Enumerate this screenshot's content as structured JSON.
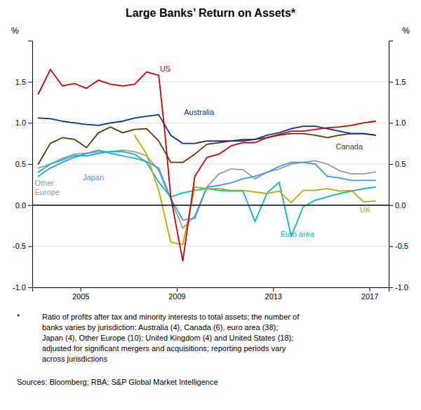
{
  "chart_data": {
    "type": "line",
    "title": "Large Banks’ Return on Assets*",
    "ylabel": "%",
    "y2label": "%",
    "xlim": [
      2003.0,
      2017.8
    ],
    "xticks": [
      2005,
      2009,
      2013,
      2017
    ],
    "ylim": [
      -1.0,
      2.0
    ],
    "yticks": [
      {
        "value": -1.0,
        "label": "-1.0"
      },
      -0.5,
      {
        "value": 0.0,
        "label": "0.0"
      },
      0.5,
      {
        "value": 1.0,
        "label": "1.0"
      },
      1.5
    ],
    "y2lim": [
      -1.0,
      2.0
    ],
    "y2ticks": [
      {
        "value": -1.0,
        "label": "-1.0"
      },
      -0.5,
      {
        "value": 0.0,
        "label": "0.0"
      },
      0.5,
      {
        "value": 1.0,
        "label": "1.0"
      },
      1.5
    ],
    "grid": true,
    "series": [
      {
        "name": "Canada",
        "color": "#663300",
        "x": [
          2003.25,
          2003.75,
          2004.25,
          2004.75,
          2005.25,
          2005.75,
          2006.25,
          2006.75,
          2007.25,
          2007.75,
          2008.25,
          2008.75,
          2009.25,
          2009.75,
          2010.25,
          2010.75,
          2011.25,
          2011.75,
          2012.25,
          2012.75,
          2013.25,
          2013.75,
          2014.25,
          2014.75,
          2015.25,
          2015.75,
          2016.25,
          2016.75,
          2017.25
        ],
        "values": [
          0.5,
          0.75,
          0.82,
          0.8,
          0.7,
          0.88,
          0.95,
          0.88,
          0.92,
          0.93,
          0.78,
          0.52,
          0.52,
          0.62,
          0.74,
          0.76,
          0.78,
          0.8,
          0.8,
          0.82,
          0.85,
          0.87,
          0.87,
          0.85,
          0.82,
          0.85,
          0.87,
          0.87,
          0.85
        ]
      },
      {
        "name": "Australia",
        "color": "#003399",
        "x": [
          2003.25,
          2003.75,
          2004.25,
          2004.75,
          2005.25,
          2005.75,
          2006.25,
          2006.75,
          2007.25,
          2007.75,
          2008.25,
          2008.75,
          2009.25,
          2009.75,
          2010.25,
          2010.75,
          2011.25,
          2011.75,
          2012.25,
          2012.75,
          2013.25,
          2013.75,
          2014.25,
          2014.75,
          2015.25,
          2015.75,
          2016.25,
          2016.75,
          2017.25
        ],
        "values": [
          1.06,
          1.05,
          1.02,
          1.0,
          0.98,
          0.97,
          1.0,
          1.02,
          1.06,
          1.08,
          1.1,
          0.85,
          0.75,
          0.75,
          0.78,
          0.78,
          0.78,
          0.78,
          0.8,
          0.85,
          0.88,
          0.93,
          0.96,
          0.96,
          0.93,
          0.9,
          0.87,
          0.87,
          0.85
        ]
      },
      {
        "name": "Other Europe",
        "color": "#999999",
        "x": [
          2003.25,
          2003.75,
          2004.25,
          2004.75,
          2005.25,
          2005.75,
          2006.25,
          2006.75,
          2007.25,
          2007.75,
          2008.25,
          2008.75,
          2009.25,
          2009.75,
          2010.25,
          2010.75,
          2011.25,
          2011.75,
          2012.25,
          2012.75,
          2013.25,
          2013.75,
          2014.25,
          2014.75,
          2015.25,
          2015.75,
          2016.25,
          2016.75,
          2017.25
        ],
        "values": [
          0.45,
          0.5,
          0.57,
          0.62,
          0.63,
          0.65,
          0.65,
          0.67,
          0.65,
          0.6,
          0.42,
          0.07,
          -0.28,
          -0.13,
          0.22,
          0.38,
          0.44,
          0.43,
          0.32,
          0.4,
          0.44,
          0.5,
          0.52,
          0.54,
          0.5,
          0.42,
          0.38,
          0.38,
          0.4
        ]
      },
      {
        "name": "Japan",
        "color": "#3399ff",
        "x": [
          2003.25,
          2003.75,
          2004.25,
          2004.75,
          2005.25,
          2005.75,
          2006.25,
          2006.75,
          2007.25,
          2007.75,
          2008.25,
          2008.75,
          2009.25,
          2009.75,
          2010.25,
          2010.75,
          2011.25,
          2011.75,
          2012.25,
          2012.75,
          2013.25,
          2013.75,
          2014.25,
          2014.75,
          2015.25,
          2015.75,
          2016.25,
          2016.75,
          2017.25
        ],
        "values": [
          0.35,
          0.45,
          0.52,
          0.58,
          0.63,
          0.67,
          0.63,
          0.6,
          0.57,
          0.53,
          0.45,
          0.08,
          -0.18,
          -0.16,
          0.22,
          0.24,
          0.27,
          0.32,
          0.35,
          0.4,
          0.47,
          0.52,
          0.52,
          0.5,
          0.35,
          0.33,
          0.3,
          0.3,
          0.3
        ]
      },
      {
        "name": "Euro area",
        "color": "#00bbbb",
        "x": [
          2003.25,
          2003.75,
          2004.25,
          2004.75,
          2005.25,
          2005.75,
          2006.25,
          2006.75,
          2007.25,
          2007.75,
          2008.25,
          2008.75,
          2009.25,
          2009.75,
          2010.25,
          2010.75,
          2011.25,
          2011.75,
          2012.25,
          2012.75,
          2013.25,
          2013.75,
          2014.25,
          2014.75,
          2015.25,
          2015.75,
          2016.25,
          2016.75,
          2017.25
        ],
        "values": [
          0.4,
          0.5,
          0.55,
          0.6,
          0.6,
          0.63,
          0.65,
          0.65,
          0.62,
          0.52,
          0.28,
          0.1,
          0.15,
          0.18,
          0.2,
          0.18,
          0.17,
          0.17,
          -0.2,
          0.15,
          0.28,
          -0.38,
          -0.02,
          0.06,
          0.1,
          0.14,
          0.17,
          0.2,
          0.22
        ]
      },
      {
        "name": "UK",
        "color": "#bbaa00",
        "x": [
          2007.25,
          2007.75,
          2008.25,
          2008.75,
          2009.25,
          2009.75,
          2010.25,
          2010.75,
          2011.25,
          2011.75,
          2012.25,
          2012.75,
          2013.25,
          2013.75,
          2014.25,
          2014.75,
          2015.25,
          2015.75,
          2016.25,
          2016.75,
          2017.25
        ],
        "values": [
          0.85,
          0.62,
          0.18,
          -0.45,
          -0.48,
          0.22,
          0.2,
          0.2,
          0.18,
          0.18,
          0.16,
          0.14,
          0.17,
          0.03,
          0.18,
          0.18,
          0.2,
          0.17,
          0.18,
          0.04,
          0.05
        ]
      },
      {
        "name": "US",
        "color": "#cc0000",
        "x": [
          2003.25,
          2003.75,
          2004.25,
          2004.75,
          2005.25,
          2005.75,
          2006.25,
          2006.75,
          2007.25,
          2007.75,
          2008.25,
          2008.5,
          2008.75,
          2009.25,
          2009.75,
          2010.25,
          2010.75,
          2011.25,
          2011.75,
          2012.25,
          2012.75,
          2013.25,
          2013.75,
          2014.25,
          2014.75,
          2015.25,
          2015.75,
          2016.25,
          2016.75,
          2017.25
        ],
        "values": [
          1.35,
          1.65,
          1.45,
          1.48,
          1.42,
          1.52,
          1.47,
          1.45,
          1.47,
          1.62,
          1.58,
          0.9,
          0.1,
          -0.68,
          0.35,
          0.58,
          0.62,
          0.72,
          0.76,
          0.76,
          0.82,
          0.86,
          0.9,
          0.9,
          0.92,
          0.94,
          0.95,
          0.97,
          1.0,
          1.02
        ]
      }
    ],
    "annotations": [
      {
        "text": "US",
        "x": 2008.3,
        "y": 1.65,
        "color": "#cc0000"
      },
      {
        "text": "Australia",
        "x": 2009.3,
        "y": 1.12,
        "color": "#003399"
      },
      {
        "text": "Canada",
        "x": 2015.6,
        "y": 0.7,
        "color": "#663300"
      },
      {
        "text": "Japan",
        "x": 2005.1,
        "y": 0.33,
        "color": "#3399ff"
      },
      {
        "text": "Other\nEurope",
        "x": 2003.1,
        "y": 0.32,
        "color": "#999999"
      },
      {
        "text": "Euro area",
        "x": 2013.3,
        "y": -0.36,
        "color": "#00bbbb"
      },
      {
        "text": "UK",
        "x": 2016.6,
        "y": -0.06,
        "color": "#bbaa00"
      }
    ],
    "footnote_marker": "*",
    "footnote": "Ratio of profits after tax and minority interests to total assets; the number of\nbanks varies by jurisdiction: Australia (4), Canada (6), euro area (38);\nJapan (4), Other Europe (10); United Kingdom (4) and United States (18);\nadjusted for significant mergers and acquisitions; reporting periods vary\nacross jurisdictions",
    "source": "Sources: Bloomberg; RBA; S&P Global Market Intelligence"
  }
}
